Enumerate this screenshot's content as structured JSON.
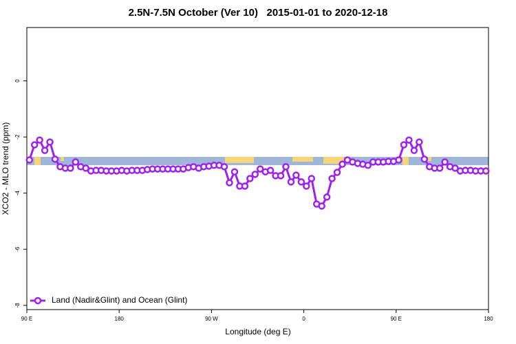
{
  "chart_data": {
    "type": "line",
    "title": "2.5N-7.5N October (Ver 10)   2015-01-01 to 2020-12-18",
    "x_label": "Longitude (deg E)",
    "y_label": "XCO2 - MLO trend (ppm)",
    "x": [
      92.5,
      97.5,
      102.5,
      107.5,
      112.5,
      117.5,
      122.5,
      127.5,
      132.5,
      137.5,
      142.5,
      147.5,
      152.5,
      157.5,
      162.5,
      167.5,
      172.5,
      177.5,
      182.5,
      187.5,
      192.5,
      197.5,
      202.5,
      207.5,
      212.5,
      217.5,
      222.5,
      227.5,
      232.5,
      237.5,
      242.5,
      247.5,
      252.5,
      257.5,
      262.5,
      267.5,
      272.5,
      277.5,
      282.5,
      287.5,
      292.5,
      297.5,
      302.5,
      307.5,
      312.5,
      317.5,
      322.5,
      327.5,
      332.5,
      337.5,
      342.5,
      347.5,
      352.5,
      357.5,
      362.5,
      367.5,
      372.5,
      377.5,
      382.5,
      387.5,
      392.5,
      397.5,
      402.5,
      407.5,
      412.5,
      417.5,
      422.5,
      427.5,
      432.5,
      437.5,
      442.5,
      447.5,
      452.5,
      457.5,
      462.5,
      467.5,
      472.5,
      477.5,
      482.5,
      487.5,
      492.5,
      497.5,
      502.5,
      507.5,
      512.5,
      517.5,
      522.5,
      527.5,
      532.5,
      537.5
    ],
    "series": [
      {
        "name": "Land (Nadir&Glint) and Ocean (Glint)",
        "color": "#a020f0",
        "values": [
          -2.82,
          -2.28,
          -2.11,
          -2.48,
          -2.18,
          -2.79,
          -3.06,
          -3.11,
          -3.11,
          -2.89,
          -3.06,
          -3.11,
          -3.21,
          -3.19,
          -3.19,
          -3.21,
          -3.21,
          -3.21,
          -3.19,
          -3.21,
          -3.19,
          -3.19,
          -3.19,
          -3.16,
          -3.14,
          -3.14,
          -3.14,
          -3.14,
          -3.14,
          -3.14,
          -3.14,
          -3.09,
          -3.06,
          -3.11,
          -3.06,
          -3.04,
          -3.01,
          -3.01,
          -3.06,
          -3.63,
          -3.24,
          -3.75,
          -3.75,
          -3.48,
          -3.33,
          -3.14,
          -3.24,
          -3.19,
          -3.38,
          -3.38,
          -3.06,
          -3.6,
          -3.36,
          -3.6,
          -3.75,
          -3.48,
          -4.39,
          -4.46,
          -4.14,
          -3.48,
          -3.26,
          -2.97,
          -2.82,
          -2.89,
          -2.94,
          -2.97,
          -3.01,
          -2.89,
          -2.89,
          -2.89,
          -2.87,
          -2.87,
          -2.82,
          -2.28,
          -2.11,
          -2.48,
          -2.18,
          -2.79,
          -3.06,
          -3.11,
          -3.11,
          -2.89,
          -3.06,
          -3.11,
          -3.21,
          -3.19,
          -3.19,
          -3.21,
          -3.21,
          -3.21
        ]
      }
    ],
    "xlim": [
      90,
      540
    ],
    "xticks": [
      {
        "value": 90,
        "label": "90 E"
      },
      180,
      {
        "value": 270,
        "label": "90 W"
      },
      {
        "value": 360,
        "label": "0"
      },
      {
        "value": 450,
        "label": "90 E"
      },
      {
        "value": 540,
        "label": "180"
      }
    ],
    "ylim": [
      -8.15,
      1.9
    ],
    "yticks": [
      0,
      -2,
      -4,
      -6,
      -8
    ],
    "legend": "bottom-left"
  }
}
